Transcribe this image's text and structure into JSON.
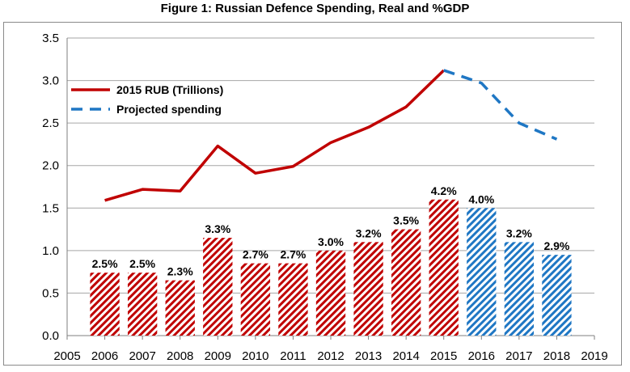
{
  "chart_data": {
    "type": "bar+line",
    "title": "Figure 1: Russian Defence Spending, Real and %GDP",
    "x_ticks": [
      "2005",
      "2006",
      "2007",
      "2008",
      "2009",
      "2010",
      "2011",
      "2012",
      "2013",
      "2014",
      "2015",
      "2016",
      "2017",
      "2018",
      "2019"
    ],
    "y_ticks": [
      "0.0",
      "0.5",
      "1.0",
      "1.5",
      "2.0",
      "2.5",
      "3.0",
      "3.5"
    ],
    "xlim": [
      2005,
      2019
    ],
    "ylim": [
      0,
      3.5
    ],
    "bars": {
      "years": [
        2006,
        2007,
        2008,
        2009,
        2010,
        2011,
        2012,
        2013,
        2014,
        2015,
        2016,
        2017,
        2018
      ],
      "values": [
        0.74,
        0.74,
        0.65,
        1.15,
        0.85,
        0.85,
        1.0,
        1.1,
        1.25,
        1.6,
        1.5,
        1.1,
        0.95
      ],
      "labels": [
        "2.5%",
        "2.5%",
        "2.3%",
        "3.3%",
        "2.7%",
        "2.7%",
        "3.0%",
        "3.2%",
        "3.5%",
        "4.2%",
        "4.0%",
        "3.2%",
        "2.9%"
      ],
      "projected_from": 2016,
      "actual_color": "#c00000",
      "projected_color": "#1f77c4"
    },
    "series": [
      {
        "name": "2015 RUB (Trillions)",
        "style": "solid",
        "color": "#c00000",
        "x": [
          2006,
          2007,
          2008,
          2009,
          2010,
          2011,
          2012,
          2013,
          2014,
          2015
        ],
        "y": [
          1.59,
          1.72,
          1.7,
          2.23,
          1.91,
          1.99,
          2.27,
          2.45,
          2.69,
          3.12
        ]
      },
      {
        "name": "Projected spending",
        "style": "dashed",
        "color": "#1f77c4",
        "x": [
          2015,
          2016,
          2017,
          2018
        ],
        "y": [
          3.12,
          2.97,
          2.5,
          2.31
        ]
      }
    ],
    "legend_position": "top-left"
  }
}
